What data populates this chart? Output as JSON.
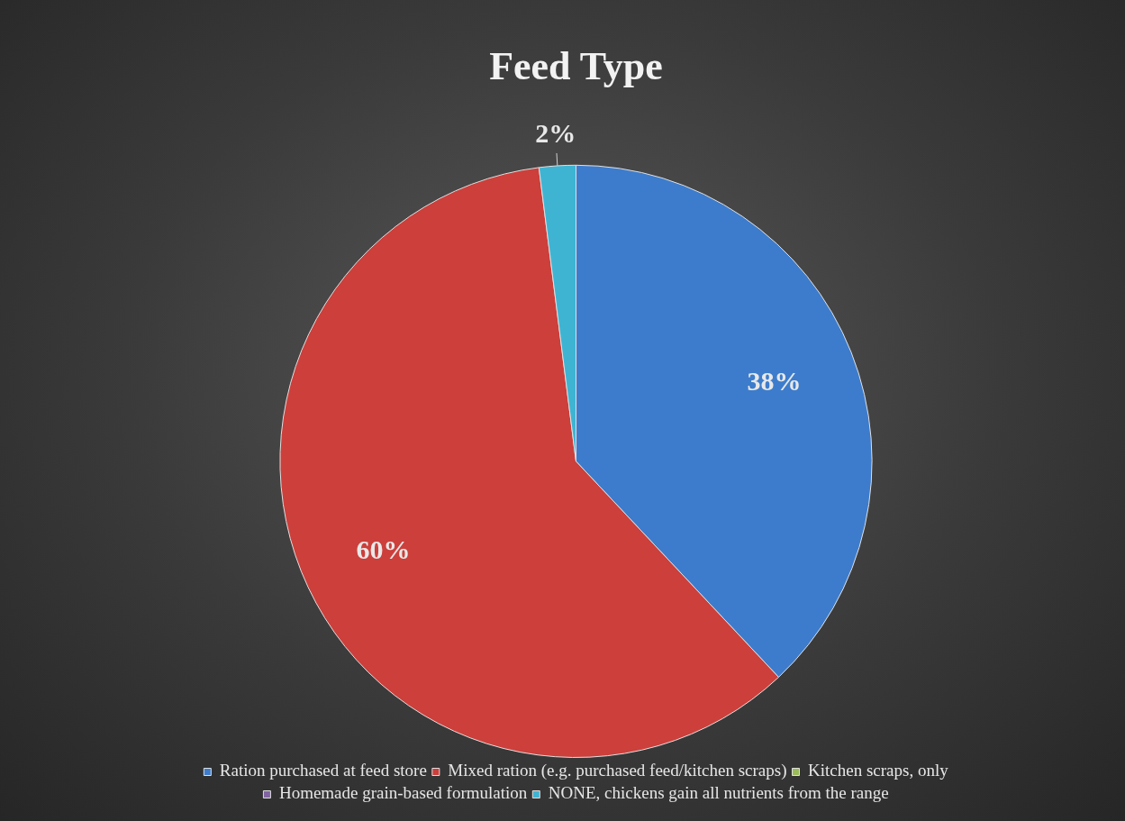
{
  "chart_data": {
    "type": "pie",
    "title": "Feed Type",
    "categories": [
      "Ration purchased at feed store",
      "Mixed ration (e.g. purchased feed/kitchen scraps)",
      "Kitchen scraps, only",
      "Homemade grain-based formulation",
      "NONE, chickens gain all nutrients from the range"
    ],
    "values": [
      38,
      60,
      0,
      0,
      2
    ],
    "colors": [
      "#3d7ccc",
      "#cc3f3b",
      "#9bbb59",
      "#8064a2",
      "#3fb4d2"
    ],
    "value_labels": [
      "38%",
      "60%",
      null,
      null,
      "2%"
    ],
    "legend": "bottom"
  }
}
